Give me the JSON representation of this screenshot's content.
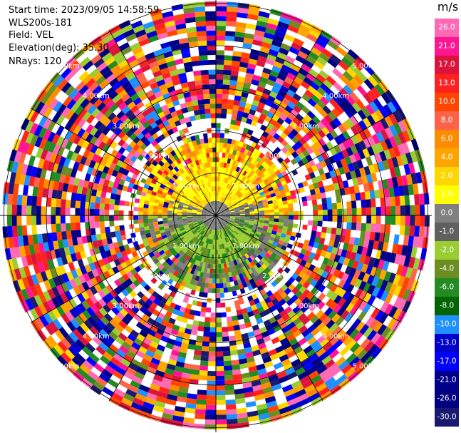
{
  "info": {
    "start_time": "Start time: 2023/09/05 14:58:59",
    "instrument": "WLS200s-181",
    "field": "Field: VEL",
    "elevation": "Elevation(deg): 35.30",
    "nrays": "NRays: 120"
  },
  "colorbar": {
    "unit": "m/s",
    "ticks": [
      "26.0",
      "21.0",
      "17.0",
      "13.0",
      "10.0",
      "8.0",
      "6.0",
      "4.0",
      "2.0",
      "1.0",
      "0.0",
      "-1.0",
      "-2.0",
      "-4.0",
      "-6.0",
      "-8.0",
      "-10.0",
      "-13.0",
      "-17.0",
      "-21.0",
      "-26.0",
      "-30.0"
    ],
    "colors": [
      "#ff69b4",
      "#ff1493",
      "#dc143c",
      "#ff2020",
      "#ff4500",
      "#ff6347",
      "#ff8c00",
      "#ffa500",
      "#ffd700",
      "#ffff00",
      "#808080",
      "#606060",
      "#9acd32",
      "#6b8e23",
      "#228b22",
      "#006400",
      "#1e90ff",
      "#0000cd",
      "#0000ff",
      "#00008b",
      "#000080",
      "#191970"
    ]
  },
  "chart_data": {
    "type": "heatmap",
    "projection": "polar PPI",
    "field": "VEL",
    "unit": "m/s",
    "nrays": 120,
    "range_ring_labels": [
      "1.00km",
      "2.00km",
      "3.00km",
      "4.00km",
      "5.00km"
    ],
    "value_range": [
      -30.0,
      26.0
    ],
    "pattern": "near-range coherent: positive (yellow/orange) to north, negative (green) to south, grey near zero at center; far range is noise"
  }
}
